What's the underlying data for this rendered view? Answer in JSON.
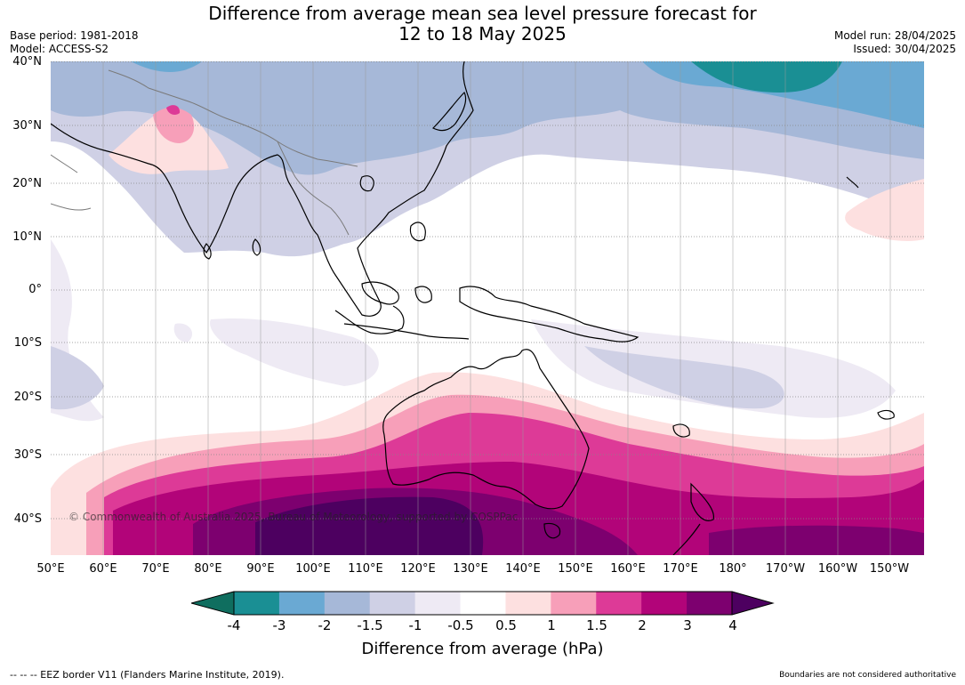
{
  "title_line1": "Difference from average mean sea level pressure forecast for",
  "title_line2": "12 to 18 May 2025",
  "base_period": "Base period: 1981-2018",
  "model": "Model: ACCESS-S2",
  "model_run": "Model run: 28/04/2025",
  "issued": "Issued: 30/04/2025",
  "copyright": "© Commonwealth of Australia 2025, Bureau of Meteorology, supported by COSPPac",
  "lat_labels": [
    "40°N",
    "30°N",
    "20°N",
    "10°N",
    "0°",
    "10°S",
    "20°S",
    "30°S",
    "40°S"
  ],
  "lon_labels": [
    "50°E",
    "60°E",
    "70°E",
    "80°E",
    "90°E",
    "100°E",
    "110°E",
    "120°E",
    "130°E",
    "140°E",
    "150°E",
    "160°E",
    "170°E",
    "180°",
    "170°W",
    "160°W",
    "150°W"
  ],
  "colorbar": {
    "title": "Difference from average (hPa)",
    "ticks": [
      "-4",
      "-3",
      "-2",
      "-1.5",
      "-1",
      "-0.5",
      "0.5",
      "1",
      "1.5",
      "2",
      "3",
      "4"
    ],
    "colors": [
      "#1a8f94",
      "#6aa9d3",
      "#a6b8d8",
      "#cfd0e5",
      "#eeeaf4",
      "#ffffff",
      "#fde0e0",
      "#f79fb9",
      "#dd3a97",
      "#b20479",
      "#7d006f"
    ],
    "under_color": "#0f6e5f",
    "over_color": "#4d0060"
  },
  "eez_note": "-- -- -- EEZ border V11 (Flanders Marine Institute, 2019).",
  "boundaries_note": "Boundaries are not considered authoritative"
}
